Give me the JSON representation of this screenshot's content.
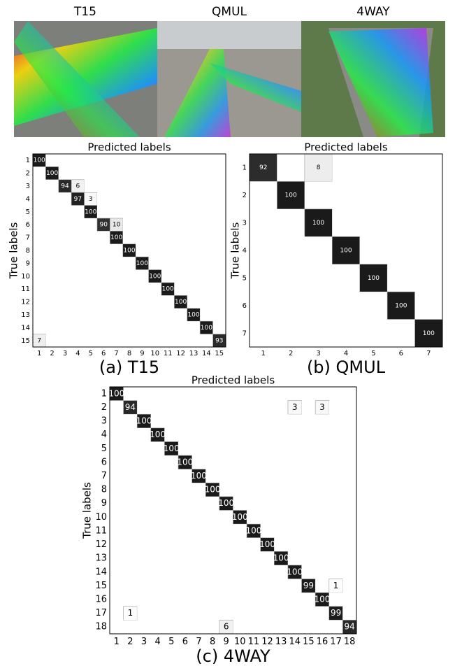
{
  "figure": {
    "images": [
      {
        "title": "T15"
      },
      {
        "title": "QMUL"
      },
      {
        "title": "4WAY"
      }
    ]
  },
  "chart_data": [
    {
      "type": "heatmap",
      "title": "Predicted labels",
      "y_label": "True labels",
      "caption": "(a) T15",
      "categories": [
        "1",
        "2",
        "3",
        "4",
        "5",
        "6",
        "7",
        "8",
        "9",
        "10",
        "11",
        "12",
        "13",
        "14",
        "15"
      ],
      "z": [
        [
          100,
          0,
          0,
          0,
          0,
          0,
          0,
          0,
          0,
          0,
          0,
          0,
          0,
          0,
          0
        ],
        [
          0,
          100,
          0,
          0,
          0,
          0,
          0,
          0,
          0,
          0,
          0,
          0,
          0,
          0,
          0
        ],
        [
          0,
          0,
          94,
          6,
          0,
          0,
          0,
          0,
          0,
          0,
          0,
          0,
          0,
          0,
          0
        ],
        [
          0,
          0,
          0,
          97,
          3,
          0,
          0,
          0,
          0,
          0,
          0,
          0,
          0,
          0,
          0
        ],
        [
          0,
          0,
          0,
          0,
          100,
          0,
          0,
          0,
          0,
          0,
          0,
          0,
          0,
          0,
          0
        ],
        [
          0,
          0,
          0,
          0,
          0,
          90,
          10,
          0,
          0,
          0,
          0,
          0,
          0,
          0,
          0
        ],
        [
          0,
          0,
          0,
          0,
          0,
          0,
          100,
          0,
          0,
          0,
          0,
          0,
          0,
          0,
          0
        ],
        [
          0,
          0,
          0,
          0,
          0,
          0,
          0,
          100,
          0,
          0,
          0,
          0,
          0,
          0,
          0
        ],
        [
          0,
          0,
          0,
          0,
          0,
          0,
          0,
          0,
          100,
          0,
          0,
          0,
          0,
          0,
          0
        ],
        [
          0,
          0,
          0,
          0,
          0,
          0,
          0,
          0,
          0,
          100,
          0,
          0,
          0,
          0,
          0
        ],
        [
          0,
          0,
          0,
          0,
          0,
          0,
          0,
          0,
          0,
          0,
          100,
          0,
          0,
          0,
          0
        ],
        [
          0,
          0,
          0,
          0,
          0,
          0,
          0,
          0,
          0,
          0,
          0,
          100,
          0,
          0,
          0
        ],
        [
          0,
          0,
          0,
          0,
          0,
          0,
          0,
          0,
          0,
          0,
          0,
          0,
          100,
          0,
          0
        ],
        [
          0,
          0,
          0,
          0,
          0,
          0,
          0,
          0,
          0,
          0,
          0,
          0,
          0,
          100,
          0
        ],
        [
          7,
          0,
          0,
          0,
          0,
          0,
          0,
          0,
          0,
          0,
          0,
          0,
          0,
          0,
          93
        ]
      ]
    },
    {
      "type": "heatmap",
      "title": "Predicted labels",
      "y_label": "True labels",
      "caption": "(b) QMUL",
      "categories": [
        "1",
        "2",
        "3",
        "4",
        "5",
        "6",
        "7"
      ],
      "z": [
        [
          92,
          0,
          8,
          0,
          0,
          0,
          0
        ],
        [
          0,
          100,
          0,
          0,
          0,
          0,
          0
        ],
        [
          0,
          0,
          100,
          0,
          0,
          0,
          0
        ],
        [
          0,
          0,
          0,
          100,
          0,
          0,
          0
        ],
        [
          0,
          0,
          0,
          0,
          100,
          0,
          0
        ],
        [
          0,
          0,
          0,
          0,
          0,
          100,
          0
        ],
        [
          0,
          0,
          0,
          0,
          0,
          0,
          100
        ]
      ]
    },
    {
      "type": "heatmap",
      "title": "Predicted labels",
      "y_label": "True labels",
      "caption": "(c) 4WAY",
      "categories": [
        "1",
        "2",
        "3",
        "4",
        "5",
        "6",
        "7",
        "8",
        "9",
        "10",
        "11",
        "12",
        "13",
        "14",
        "15",
        "16",
        "17",
        "18"
      ],
      "z": [
        [
          100,
          0,
          0,
          0,
          0,
          0,
          0,
          0,
          0,
          0,
          0,
          0,
          0,
          0,
          0,
          0,
          0,
          0
        ],
        [
          0,
          94,
          0,
          0,
          0,
          0,
          0,
          0,
          0,
          0,
          0,
          0,
          0,
          3,
          0,
          3,
          0,
          0
        ],
        [
          0,
          0,
          100,
          0,
          0,
          0,
          0,
          0,
          0,
          0,
          0,
          0,
          0,
          0,
          0,
          0,
          0,
          0
        ],
        [
          0,
          0,
          0,
          100,
          0,
          0,
          0,
          0,
          0,
          0,
          0,
          0,
          0,
          0,
          0,
          0,
          0,
          0
        ],
        [
          0,
          0,
          0,
          0,
          100,
          0,
          0,
          0,
          0,
          0,
          0,
          0,
          0,
          0,
          0,
          0,
          0,
          0
        ],
        [
          0,
          0,
          0,
          0,
          0,
          100,
          0,
          0,
          0,
          0,
          0,
          0,
          0,
          0,
          0,
          0,
          0,
          0
        ],
        [
          0,
          0,
          0,
          0,
          0,
          0,
          100,
          0,
          0,
          0,
          0,
          0,
          0,
          0,
          0,
          0,
          0,
          0
        ],
        [
          0,
          0,
          0,
          0,
          0,
          0,
          0,
          100,
          0,
          0,
          0,
          0,
          0,
          0,
          0,
          0,
          0,
          0
        ],
        [
          0,
          0,
          0,
          0,
          0,
          0,
          0,
          0,
          100,
          0,
          0,
          0,
          0,
          0,
          0,
          0,
          0,
          0
        ],
        [
          0,
          0,
          0,
          0,
          0,
          0,
          0,
          0,
          0,
          100,
          0,
          0,
          0,
          0,
          0,
          0,
          0,
          0
        ],
        [
          0,
          0,
          0,
          0,
          0,
          0,
          0,
          0,
          0,
          0,
          100,
          0,
          0,
          0,
          0,
          0,
          0,
          0
        ],
        [
          0,
          0,
          0,
          0,
          0,
          0,
          0,
          0,
          0,
          0,
          0,
          100,
          0,
          0,
          0,
          0,
          0,
          0
        ],
        [
          0,
          0,
          0,
          0,
          0,
          0,
          0,
          0,
          0,
          0,
          0,
          0,
          100,
          0,
          0,
          0,
          0,
          0
        ],
        [
          0,
          0,
          0,
          0,
          0,
          0,
          0,
          0,
          0,
          0,
          0,
          0,
          0,
          100,
          0,
          0,
          0,
          0
        ],
        [
          0,
          0,
          0,
          0,
          0,
          0,
          0,
          0,
          0,
          0,
          0,
          0,
          0,
          0,
          99,
          0,
          1,
          0
        ],
        [
          0,
          0,
          0,
          0,
          0,
          0,
          0,
          0,
          0,
          0,
          0,
          0,
          0,
          0,
          0,
          100,
          0,
          0
        ],
        [
          0,
          1,
          0,
          0,
          0,
          0,
          0,
          0,
          0,
          0,
          0,
          0,
          0,
          0,
          0,
          0,
          99,
          0
        ],
        [
          0,
          0,
          0,
          0,
          0,
          0,
          0,
          0,
          6,
          0,
          0,
          0,
          0,
          0,
          0,
          0,
          0,
          94
        ]
      ]
    }
  ]
}
